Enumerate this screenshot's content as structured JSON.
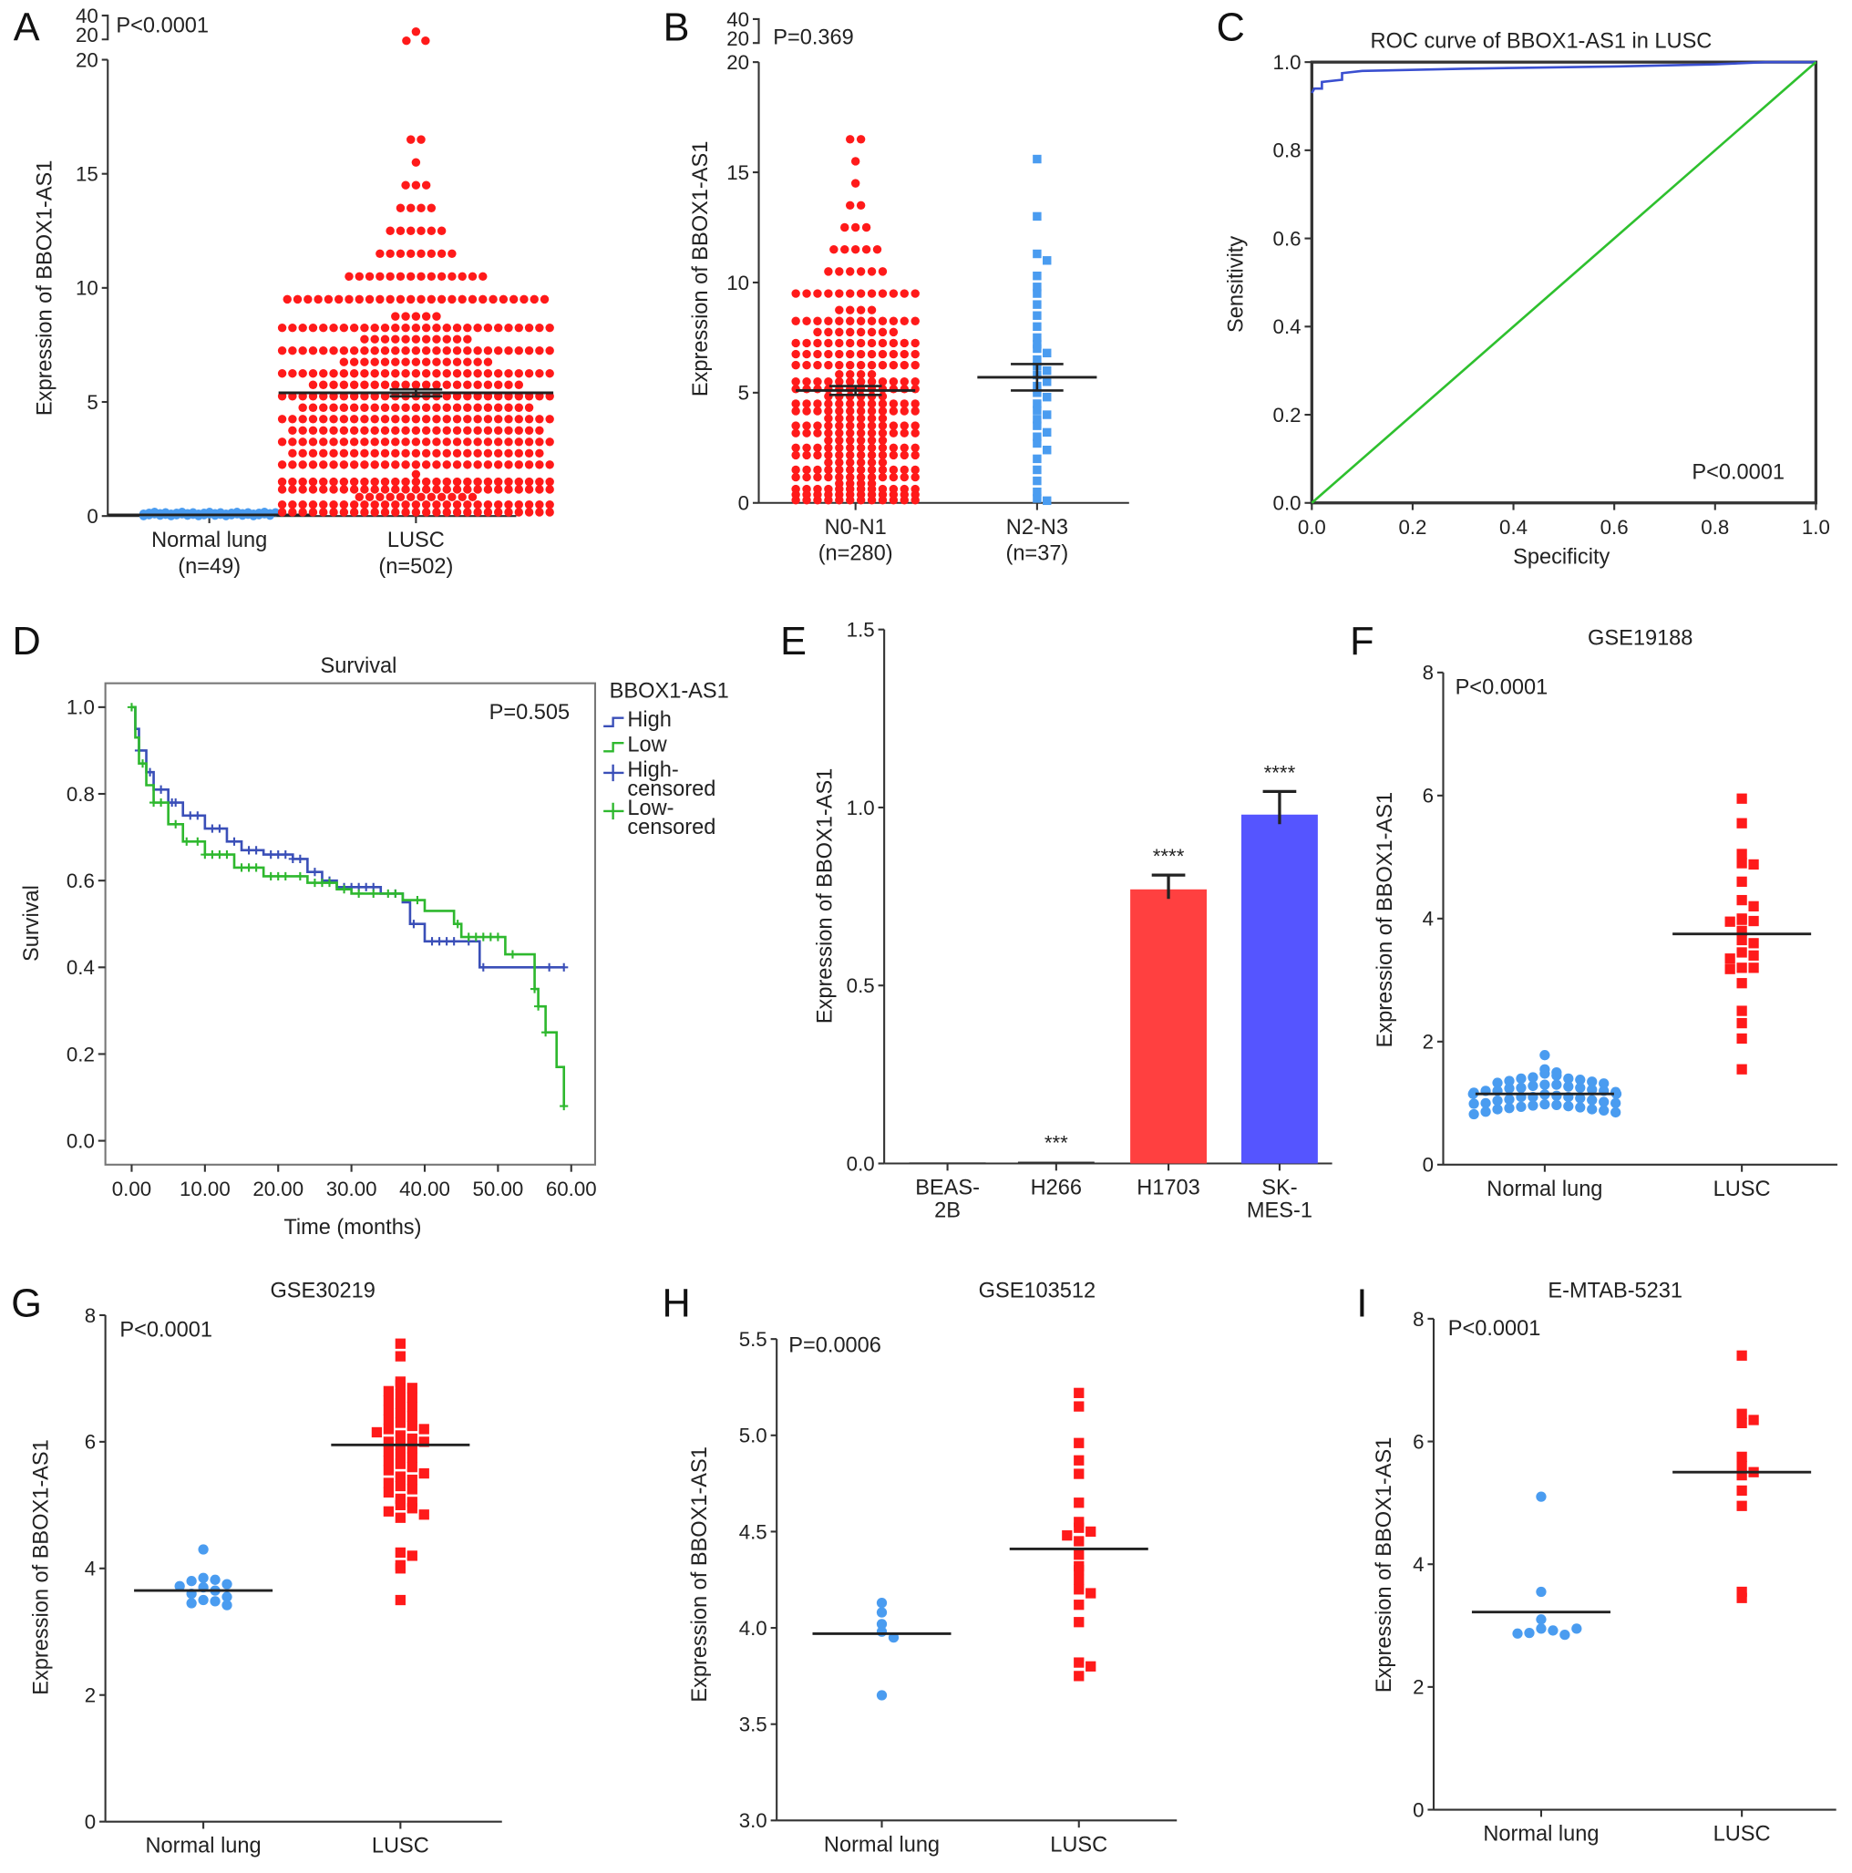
{
  "chart_data": [
    {
      "id": "A",
      "type": "scatter",
      "panel_label": "A",
      "ylabel": "Expression of BBOX1-AS1",
      "annotation": "P<0.0001",
      "ylim": [
        0,
        20
      ],
      "yticks": [
        "0",
        "5",
        "10",
        "15",
        "20"
      ],
      "axis_break_ticks": [
        "20",
        "40"
      ],
      "categories": [
        "Normal lung",
        "LUSC"
      ],
      "category_n": [
        "(n=49)",
        "(n=502)"
      ],
      "series": [
        {
          "category": "Normal lung",
          "color": "#4a9cf0",
          "marker": "circle",
          "n": 49,
          "value_range": [
            0,
            0.2
          ],
          "mean": 0.05
        },
        {
          "category": "LUSC",
          "color": "#ff1a1a",
          "marker": "circle",
          "n": 502,
          "bin_width": 1,
          "bin_counts_from_0": [
            66,
            55,
            52,
            52,
            50,
            48,
            42,
            38,
            32,
            26,
            14,
            8,
            6,
            4,
            3,
            1,
            2
          ],
          "outliers": [
            22,
            22,
            30
          ],
          "mean": 5.4,
          "sem": 0.15
        }
      ]
    },
    {
      "id": "B",
      "type": "scatter",
      "panel_label": "B",
      "ylabel": "Expression of BBOX1-AS1",
      "annotation": "P=0.369",
      "ylim": [
        0,
        20
      ],
      "yticks": [
        "0",
        "5",
        "10",
        "15",
        "20"
      ],
      "axis_break_ticks": [
        "20",
        "40"
      ],
      "categories": [
        "N0-N1",
        "N2-N3"
      ],
      "category_n": [
        "(n=280)",
        "(n=37)"
      ],
      "series": [
        {
          "category": "N0-N1",
          "color": "#ff1a1a",
          "marker": "circle",
          "n": 280,
          "bin_width": 1,
          "bin_counts_from_0": [
            40,
            30,
            30,
            30,
            30,
            28,
            24,
            20,
            16,
            12,
            6,
            5,
            3,
            2,
            1,
            1,
            2
          ],
          "mean": 5.1,
          "sem": 0.2
        },
        {
          "category": "N2-N3",
          "color": "#4a9cf0",
          "marker": "square",
          "n": 37,
          "values": [
            15.6,
            13,
            11.3,
            11,
            10.3,
            9.8,
            9.5,
            9,
            8.5,
            8,
            7.5,
            7.2,
            7,
            6.8,
            6.5,
            6.2,
            6,
            5.8,
            5.5,
            5.3,
            5,
            4.8,
            4.5,
            4.2,
            4,
            3.8,
            3.5,
            3.2,
            3,
            2.7,
            2.4,
            2,
            1.5,
            1,
            0.5,
            0.2,
            0.1
          ],
          "mean": 5.7,
          "sem": 0.6
        }
      ]
    },
    {
      "id": "C",
      "type": "line",
      "panel_label": "C",
      "title": "ROC curve of BBOX1-AS1 in LUSC",
      "xlabel": "Specificity",
      "ylabel": "Sensitivity",
      "annotation": "P<0.0001",
      "xlim": [
        0,
        1
      ],
      "ylim": [
        0,
        1
      ],
      "xticks": [
        "0.0",
        "0.2",
        "0.4",
        "0.6",
        "0.8",
        "1.0"
      ],
      "yticks": [
        "0.0",
        "0.2",
        "0.4",
        "0.6",
        "0.8",
        "1.0"
      ],
      "series": [
        {
          "color": "#3a4fd0",
          "points": [
            [
              0,
              0.93
            ],
            [
              0.005,
              0.94
            ],
            [
              0.02,
              0.94
            ],
            [
              0.02,
              0.955
            ],
            [
              0.06,
              0.96
            ],
            [
              0.06,
              0.975
            ],
            [
              0.1,
              0.98
            ],
            [
              0.3,
              0.985
            ],
            [
              0.6,
              0.99
            ],
            [
              0.8,
              0.995
            ],
            [
              0.9,
              1
            ],
            [
              1,
              1
            ]
          ]
        },
        {
          "color": "#2ec02e",
          "points": [
            [
              0,
              0
            ],
            [
              1,
              1
            ]
          ]
        }
      ]
    },
    {
      "id": "D",
      "type": "line",
      "panel_label": "D",
      "title": "Survival",
      "xlabel": "Time (months)",
      "ylabel": "Survival",
      "annotation": "P=0.505",
      "xlim": [
        0,
        60
      ],
      "ylim": [
        0,
        1
      ],
      "xticks": [
        "0.00",
        "10.00",
        "20.00",
        "30.00",
        "40.00",
        "50.00",
        "60.00"
      ],
      "yticks": [
        "0.0",
        "0.2",
        "0.4",
        "0.6",
        "0.8",
        "1.0"
      ],
      "legend": {
        "title": "BBOX1-AS1",
        "position": "right",
        "entries": [
          "High",
          "Low",
          "High-\ncensored",
          "Low-\ncensored"
        ]
      },
      "series": [
        {
          "name": "High",
          "color": "#3a4fb8",
          "step": true,
          "points": [
            [
              0,
              1
            ],
            [
              0.5,
              0.95
            ],
            [
              1,
              0.9
            ],
            [
              2,
              0.85
            ],
            [
              3,
              0.81
            ],
            [
              5,
              0.78
            ],
            [
              7,
              0.75
            ],
            [
              10,
              0.72
            ],
            [
              13,
              0.69
            ],
            [
              15,
              0.67
            ],
            [
              18,
              0.66
            ],
            [
              22,
              0.65
            ],
            [
              24,
              0.62
            ],
            [
              26,
              0.6
            ],
            [
              28,
              0.585
            ],
            [
              34,
              0.57
            ],
            [
              37,
              0.55
            ],
            [
              38,
              0.5
            ],
            [
              40,
              0.46
            ],
            [
              47.5,
              0.4
            ],
            [
              59,
              0.4
            ]
          ],
          "censored": [
            1,
            2.5,
            4,
            5.5,
            6,
            8,
            9,
            11,
            12,
            14,
            16,
            17,
            19,
            20,
            21,
            22,
            23,
            25,
            27,
            29,
            30,
            31,
            32,
            33,
            36,
            38.5,
            41,
            42,
            43,
            44,
            46,
            48,
            55,
            57,
            59
          ]
        },
        {
          "name": "Low",
          "color": "#2eb82e",
          "step": true,
          "points": [
            [
              0,
              1
            ],
            [
              0.5,
              0.93
            ],
            [
              1,
              0.87
            ],
            [
              2,
              0.82
            ],
            [
              3,
              0.78
            ],
            [
              5,
              0.73
            ],
            [
              7,
              0.69
            ],
            [
              10,
              0.66
            ],
            [
              14,
              0.63
            ],
            [
              18,
              0.61
            ],
            [
              24,
              0.595
            ],
            [
              28,
              0.58
            ],
            [
              30,
              0.57
            ],
            [
              37,
              0.555
            ],
            [
              40,
              0.53
            ],
            [
              44,
              0.5
            ],
            [
              45,
              0.47
            ],
            [
              51,
              0.43
            ],
            [
              55,
              0.35
            ],
            [
              55.5,
              0.31
            ],
            [
              56.5,
              0.25
            ],
            [
              58,
              0.17
            ],
            [
              59,
              0.08
            ]
          ],
          "censored": [
            0,
            1.5,
            3,
            4,
            6,
            7.5,
            9,
            10,
            11,
            12,
            13,
            15,
            16,
            17,
            19,
            20,
            21,
            23,
            25,
            26,
            27,
            29,
            31,
            33,
            35,
            36,
            39,
            44.5,
            46,
            47,
            48,
            49,
            50,
            52,
            55,
            55.5,
            56.5,
            59
          ]
        }
      ]
    },
    {
      "id": "E",
      "type": "bar",
      "panel_label": "E",
      "ylabel": "Expression of BBOX1-AS1",
      "ylim": [
        0,
        1.5
      ],
      "yticks": [
        "0.0",
        "0.5",
        "1.0",
        "1.5"
      ],
      "categories": [
        "BEAS-\n2B",
        "H266",
        "H1703",
        "SK-\nMES-1"
      ],
      "values": [
        0.003,
        0.005,
        0.77,
        0.98
      ],
      "errors": [
        0,
        0,
        0.04,
        0.065
      ],
      "significance": [
        "",
        "***",
        "****",
        "****"
      ],
      "colors": [
        "#333333",
        "#333333",
        "#ff4040",
        "#5555ff"
      ]
    },
    {
      "id": "F",
      "type": "scatter",
      "panel_label": "F",
      "title": "GSE19188",
      "ylabel": "Expression of BBOX1-AS1",
      "annotation": "P<0.0001",
      "ylim": [
        0,
        8
      ],
      "yticks": [
        "0",
        "2",
        "4",
        "6",
        "8"
      ],
      "categories": [
        "Normal lung",
        "LUSC"
      ],
      "series": [
        {
          "category": "Normal lung",
          "color": "#4a9cf0",
          "marker": "circle",
          "mean": 1.15,
          "values": [
            1.78,
            1.55,
            1.5,
            1.48,
            1.45,
            1.42,
            1.4,
            1.4,
            1.38,
            1.36,
            1.35,
            1.33,
            1.32,
            1.3,
            1.3,
            1.28,
            1.27,
            1.25,
            1.25,
            1.24,
            1.22,
            1.2,
            1.2,
            1.2,
            1.18,
            1.17,
            1.15,
            1.15,
            1.14,
            1.12,
            1.1,
            1.1,
            1.1,
            1.08,
            1.06,
            1.05,
            1.04,
            1.02,
            1.0,
            1.0,
            0.99,
            0.98,
            0.97,
            0.96,
            0.95,
            0.94,
            0.93,
            0.92,
            0.9,
            0.9,
            0.88,
            0.86,
            0.85,
            0.82
          ]
        },
        {
          "category": "LUSC",
          "color": "#ff1a1a",
          "marker": "square",
          "mean": 3.75,
          "values": [
            5.95,
            5.55,
            5.05,
            4.9,
            4.88,
            4.6,
            4.3,
            4.2,
            4.0,
            3.98,
            3.96,
            3.95,
            3.8,
            3.65,
            3.6,
            3.45,
            3.4,
            3.35,
            3.2,
            3.2,
            3.18,
            2.95,
            2.5,
            2.3,
            2.05,
            1.55
          ]
        }
      ]
    },
    {
      "id": "G",
      "type": "scatter",
      "panel_label": "G",
      "title": "GSE30219",
      "ylabel": "Expression of BBOX1-AS1",
      "annotation": "P<0.0001",
      "ylim": [
        0,
        8
      ],
      "yticks": [
        "0",
        "2",
        "4",
        "6",
        "8"
      ],
      "categories": [
        "Normal lung",
        "LUSC"
      ],
      "series": [
        {
          "category": "Normal lung",
          "color": "#4a9cf0",
          "marker": "circle",
          "mean": 3.65,
          "values": [
            4.3,
            3.85,
            3.82,
            3.8,
            3.75,
            3.72,
            3.7,
            3.65,
            3.6,
            3.55,
            3.5,
            3.48,
            3.45,
            3.42
          ]
        },
        {
          "category": "LUSC",
          "color": "#ff1a1a",
          "marker": "square",
          "mean": 5.95,
          "values": [
            7.55,
            7.35,
            6.95,
            6.9,
            6.85,
            6.8,
            6.75,
            6.7,
            6.65,
            6.6,
            6.55,
            6.5,
            6.45,
            6.4,
            6.35,
            6.3,
            6.25,
            6.2,
            6.2,
            6.15,
            6.1,
            6.05,
            6.0,
            6.0,
            5.95,
            5.9,
            5.85,
            5.8,
            5.75,
            5.7,
            5.65,
            5.6,
            5.55,
            5.5,
            5.45,
            5.4,
            5.35,
            5.3,
            5.25,
            5.2,
            5.1,
            5.05,
            5.0,
            4.95,
            4.9,
            4.85,
            4.8,
            4.25,
            4.2,
            4.05,
            4.0,
            3.5
          ]
        }
      ]
    },
    {
      "id": "H",
      "type": "scatter",
      "panel_label": "H",
      "title": "GSE103512",
      "ylabel": "Expression of BBOX1-AS1",
      "annotation": "P=0.0006",
      "ylim": [
        3.0,
        5.5
      ],
      "yticks": [
        "3.0",
        "3.5",
        "4.0",
        "4.5",
        "5.0",
        "5.5"
      ],
      "categories": [
        "Normal lung",
        "LUSC"
      ],
      "series": [
        {
          "category": "Normal lung",
          "color": "#4a9cf0",
          "marker": "circle",
          "mean": 3.97,
          "values": [
            4.13,
            4.08,
            4.02,
            3.98,
            3.95,
            3.65
          ]
        },
        {
          "category": "LUSC",
          "color": "#ff1a1a",
          "marker": "square",
          "mean": 4.41,
          "values": [
            5.22,
            5.15,
            4.96,
            4.87,
            4.8,
            4.65,
            4.55,
            4.52,
            4.5,
            4.48,
            4.45,
            4.38,
            4.32,
            4.3,
            4.25,
            4.2,
            4.18,
            4.12,
            4.03,
            3.82,
            3.8,
            3.75
          ]
        }
      ]
    },
    {
      "id": "I",
      "type": "scatter",
      "panel_label": "I",
      "title": "E-MTAB-5231",
      "ylabel": "Expression of BBOX1-AS1",
      "annotation": "P<0.0001",
      "ylim": [
        0,
        8
      ],
      "yticks": [
        "0",
        "2",
        "4",
        "6",
        "8"
      ],
      "categories": [
        "Normal lung",
        "LUSC"
      ],
      "series": [
        {
          "category": "Normal lung",
          "color": "#4a9cf0",
          "marker": "circle",
          "mean": 3.22,
          "values": [
            5.1,
            3.55,
            3.1,
            2.95,
            2.92,
            2.88,
            2.85,
            2.87,
            2.95
          ]
        },
        {
          "category": "LUSC",
          "color": "#ff1a1a",
          "marker": "square",
          "mean": 5.5,
          "values": [
            7.4,
            6.45,
            6.35,
            6.3,
            5.75,
            5.6,
            5.5,
            5.45,
            5.2,
            4.95,
            3.55,
            3.45
          ]
        }
      ]
    }
  ]
}
